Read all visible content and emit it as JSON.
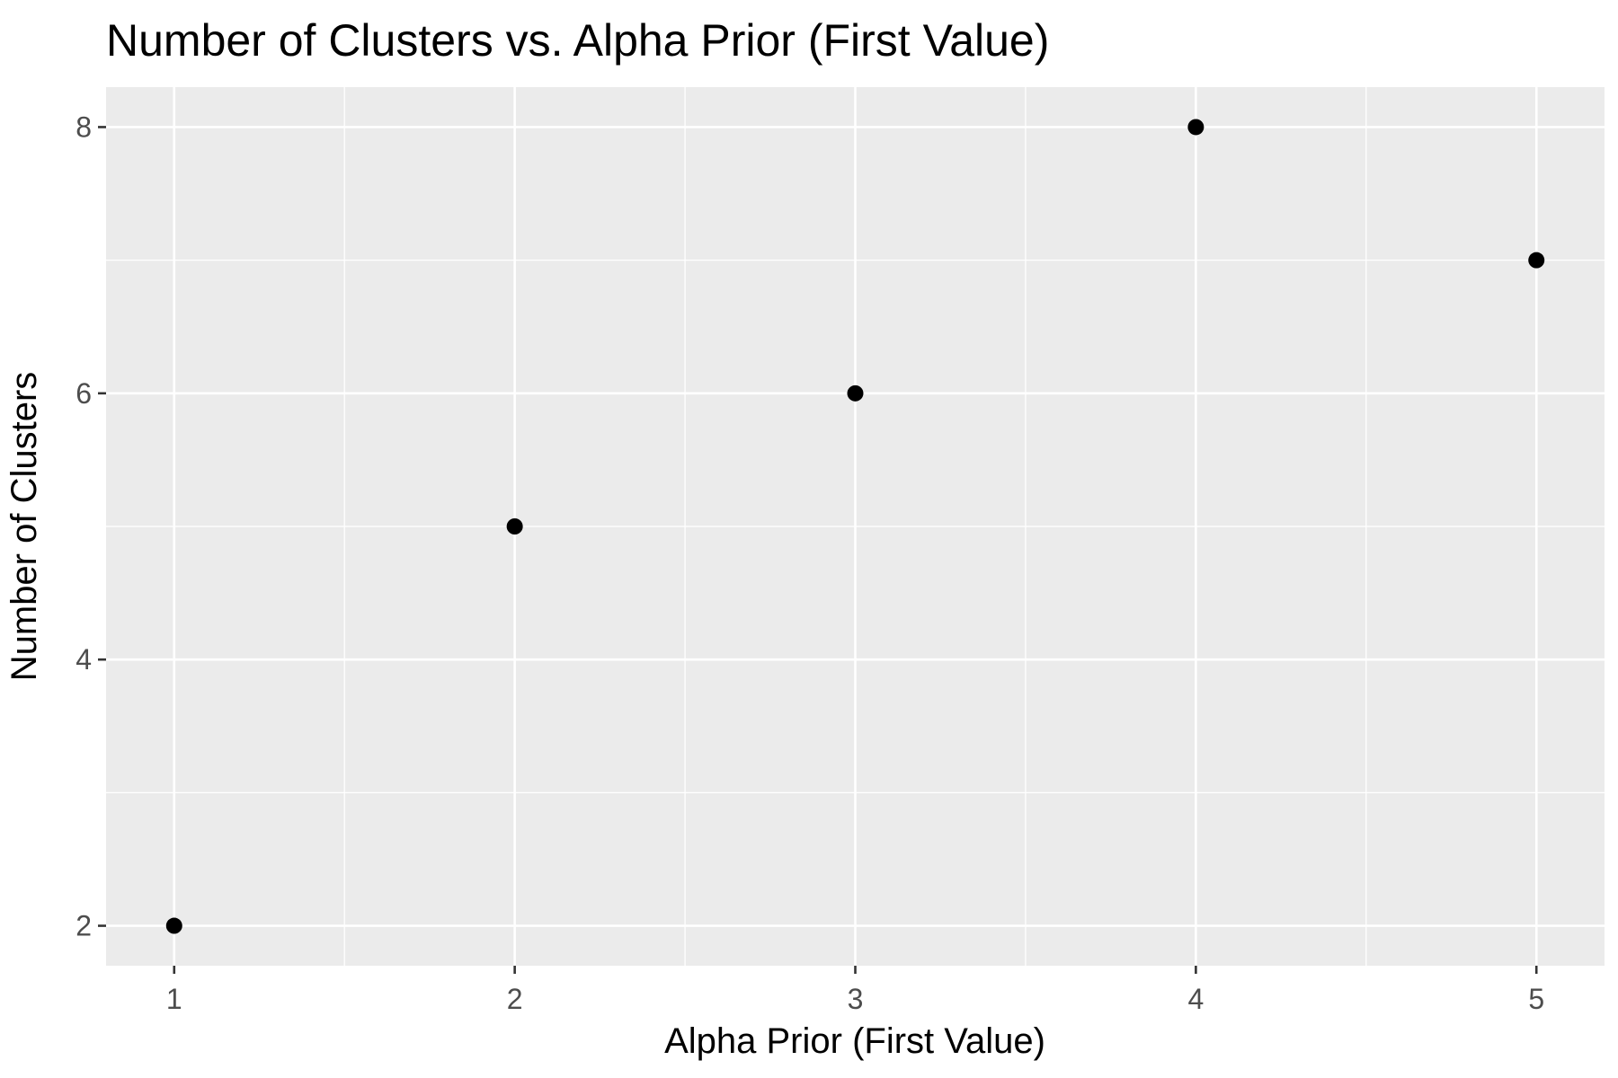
{
  "chart_data": {
    "type": "scatter",
    "title": "Number of Clusters vs. Alpha Prior (First Value)",
    "xlabel": "Alpha Prior (First Value)",
    "ylabel": "Number of Clusters",
    "x": [
      1,
      2,
      3,
      4,
      5
    ],
    "y": [
      2,
      5,
      6,
      8,
      7
    ],
    "xlim": [
      0.8,
      5.2
    ],
    "ylim": [
      1.7,
      8.3
    ],
    "x_ticks": [
      "1",
      "2",
      "3",
      "4",
      "5"
    ],
    "y_ticks": [
      "2",
      "4",
      "6",
      "8"
    ],
    "grid": true,
    "legend": "none",
    "colors": {
      "panel_background": "#ebebeb",
      "grid_major": "#ffffff",
      "grid_minor": "#ffffff",
      "point": "#000000",
      "tick_text": "#4d4d4d",
      "tick_mark": "#333333",
      "text": "#000000"
    }
  }
}
